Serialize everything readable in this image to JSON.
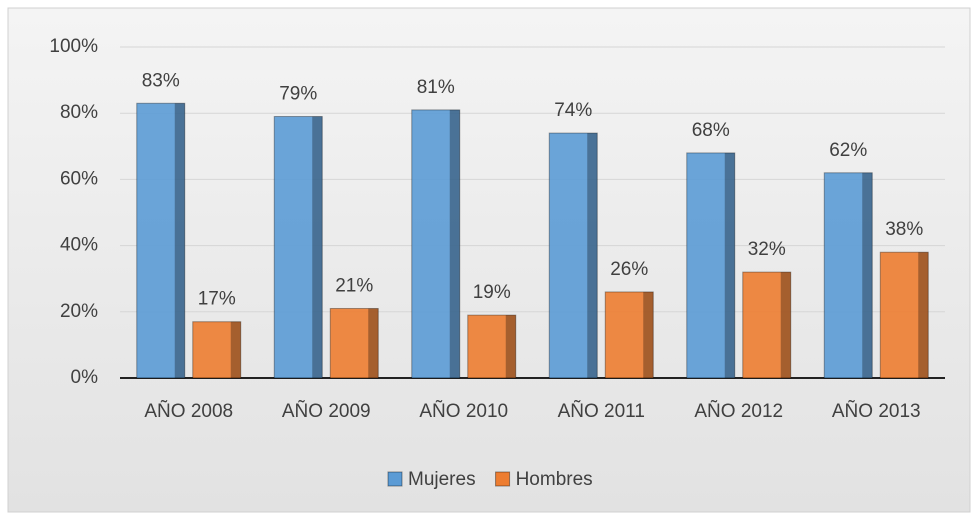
{
  "chart_data": {
    "type": "bar",
    "categories": [
      "AÑO 2008",
      "AÑO 2009",
      "AÑO 2010",
      "AÑO 2011",
      "AÑO 2012",
      "AÑO 2013"
    ],
    "series": [
      {
        "name": "Mujeres",
        "color": "#5b9bd5",
        "values": [
          83,
          79,
          81,
          74,
          68,
          62
        ],
        "value_labels": [
          "83%",
          "79%",
          "81%",
          "74%",
          "68%",
          "62%"
        ]
      },
      {
        "name": "Hombres",
        "color": "#ed7d31",
        "values": [
          17,
          21,
          19,
          26,
          32,
          38
        ],
        "value_labels": [
          "17%",
          "21%",
          "19%",
          "26%",
          "32%",
          "38%"
        ]
      }
    ],
    "ylim": [
      0,
      100
    ],
    "yticks": [
      {
        "value": 0,
        "label": "0%"
      },
      {
        "value": 20,
        "label": "20%"
      },
      {
        "value": 40,
        "label": "40%"
      },
      {
        "value": 60,
        "label": "60%"
      },
      {
        "value": 80,
        "label": "80%"
      },
      {
        "value": 100,
        "label": "100%"
      }
    ],
    "grid": true,
    "legend": "bottom"
  }
}
